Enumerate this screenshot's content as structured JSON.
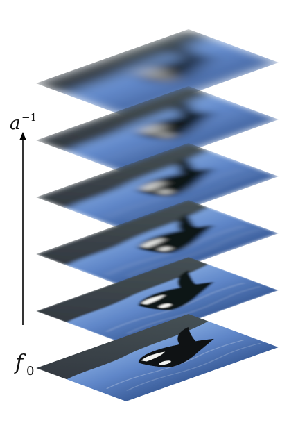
{
  "labels": {
    "top_symbol": "a",
    "top_exponent": "−1",
    "bottom_symbol": "f",
    "bottom_subscript": "0"
  },
  "layers": [
    {
      "level": 0,
      "blur": 0.0
    },
    {
      "level": 1,
      "blur": 1.2
    },
    {
      "level": 2,
      "blur": 2.6
    },
    {
      "level": 3,
      "blur": 4.2
    },
    {
      "level": 4,
      "blur": 6.2
    },
    {
      "level": 5,
      "blur": 9.0
    }
  ],
  "colors": {
    "water_light": "#8fb4e6",
    "water_mid": "#5f86c8",
    "water_dark": "#3c5f9c",
    "shore_dark": "#2c2f31",
    "shore_mid": "#3d4544",
    "orca_black": "#0f1214",
    "orca_white": "#f2f3f0",
    "arrow": "#000000"
  }
}
